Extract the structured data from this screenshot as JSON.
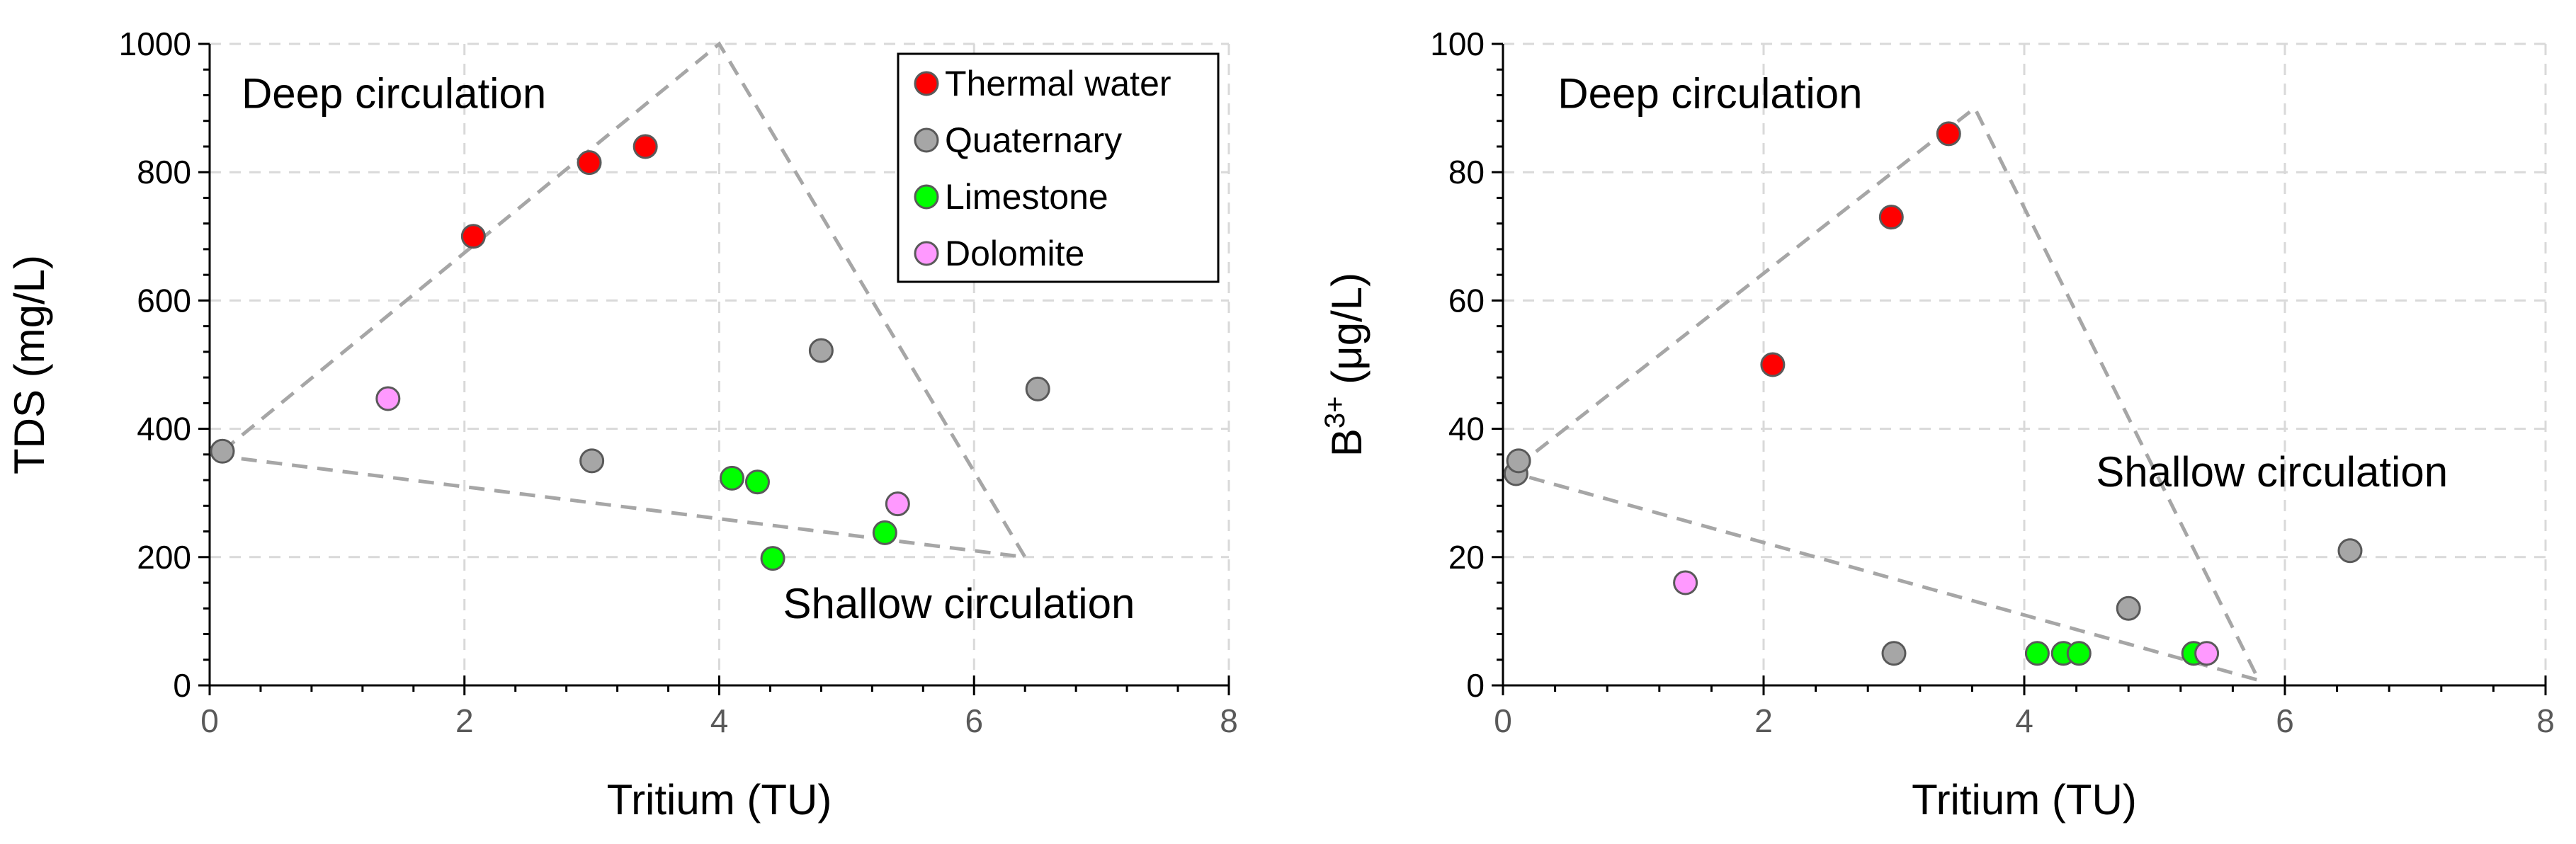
{
  "chart_data": [
    {
      "type": "scatter",
      "xlabel": "Tritium (TU)",
      "ylabel": "TDS (mg/L)",
      "xlim": [
        0,
        8
      ],
      "ylim": [
        0,
        1000
      ],
      "xticks": [
        "0",
        "2",
        "4",
        "6",
        "8"
      ],
      "yticks": [
        "0",
        "200",
        "400",
        "600",
        "800",
        "1000"
      ],
      "grid": true,
      "legend_position": "top-right",
      "series": [
        {
          "name": "Thermal water",
          "color": "#ff0000",
          "points": [
            [
              2.07,
              700
            ],
            [
              2.98,
              815
            ],
            [
              3.42,
              840
            ]
          ]
        },
        {
          "name": "Quaternary",
          "color": "#a6a6a6",
          "points": [
            [
              0.1,
              365
            ],
            [
              3.0,
              350
            ],
            [
              4.8,
              522
            ],
            [
              6.5,
              462
            ]
          ]
        },
        {
          "name": "Limestone",
          "color": "#00ff00",
          "points": [
            [
              4.1,
              323
            ],
            [
              4.3,
              317
            ],
            [
              4.42,
              198
            ],
            [
              5.3,
              238
            ]
          ]
        },
        {
          "name": "Dolomite",
          "color": "#ff99ff",
          "points": [
            [
              1.4,
              447
            ],
            [
              5.4,
              283
            ]
          ]
        }
      ],
      "boundary_lines": [
        [
          [
            0.1,
            365
          ],
          [
            4.0,
            1000
          ],
          [
            6.4,
            200
          ],
          [
            0.1,
            357
          ]
        ]
      ],
      "annotations": [
        {
          "text": "Deep circulation",
          "x": 0.25,
          "y": 900
        },
        {
          "text": "Shallow circulation",
          "x": 4.5,
          "y": 105
        }
      ]
    },
    {
      "type": "scatter",
      "xlabel": "Tritium (TU)",
      "ylabel": "B³⁺ (μg/L)",
      "ylabel_base": "B",
      "ylabel_sup": "3+",
      "ylabel_rest": " (μg/L)",
      "xlim": [
        0,
        8
      ],
      "ylim": [
        0,
        100
      ],
      "xticks": [
        "0",
        "2",
        "4",
        "6",
        "8"
      ],
      "yticks": [
        "0",
        "20",
        "40",
        "60",
        "80",
        "100"
      ],
      "grid": true,
      "series": [
        {
          "name": "Thermal water",
          "color": "#ff0000",
          "points": [
            [
              2.07,
              50
            ],
            [
              2.98,
              73
            ],
            [
              3.42,
              86
            ]
          ]
        },
        {
          "name": "Quaternary",
          "color": "#a6a6a6",
          "points": [
            [
              0.1,
              33
            ],
            [
              0.12,
              35
            ],
            [
              3.0,
              5
            ],
            [
              4.8,
              12
            ],
            [
              6.5,
              21
            ]
          ]
        },
        {
          "name": "Limestone",
          "color": "#00ff00",
          "points": [
            [
              4.1,
              5
            ],
            [
              4.3,
              5
            ],
            [
              4.42,
              5
            ],
            [
              5.3,
              5
            ]
          ]
        },
        {
          "name": "Dolomite",
          "color": "#ff99ff",
          "points": [
            [
              1.4,
              16
            ],
            [
              5.4,
              5
            ]
          ]
        }
      ],
      "boundary_lines": [
        [
          [
            0.1,
            34
          ],
          [
            3.62,
            90
          ],
          [
            5.8,
            0.8
          ],
          [
            0.1,
            33
          ]
        ]
      ],
      "annotations": [
        {
          "text": "Deep circulation",
          "x": 0.42,
          "y": 90
        },
        {
          "text": "Shallow circulation",
          "x": 4.55,
          "y": 31
        }
      ]
    }
  ],
  "legend": {
    "entries": [
      {
        "label": "Thermal water",
        "color": "#ff0000"
      },
      {
        "label": "Quaternary",
        "color": "#a6a6a6"
      },
      {
        "label": "Limestone",
        "color": "#00ff00"
      },
      {
        "label": "Dolomite",
        "color": "#ff99ff"
      }
    ]
  }
}
